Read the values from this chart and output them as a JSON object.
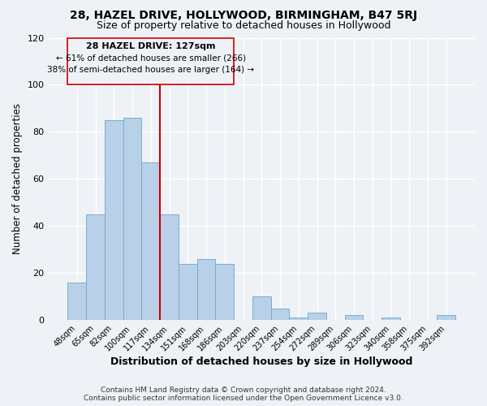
{
  "title1": "28, HAZEL DRIVE, HOLLYWOOD, BIRMINGHAM, B47 5RJ",
  "title2": "Size of property relative to detached houses in Hollywood",
  "xlabel": "Distribution of detached houses by size in Hollywood",
  "ylabel": "Number of detached properties",
  "bar_labels": [
    "48sqm",
    "65sqm",
    "82sqm",
    "100sqm",
    "117sqm",
    "134sqm",
    "151sqm",
    "168sqm",
    "186sqm",
    "203sqm",
    "220sqm",
    "237sqm",
    "254sqm",
    "272sqm",
    "289sqm",
    "306sqm",
    "323sqm",
    "340sqm",
    "358sqm",
    "375sqm",
    "392sqm"
  ],
  "bar_values": [
    16,
    45,
    85,
    86,
    67,
    45,
    24,
    26,
    24,
    0,
    10,
    5,
    1,
    3,
    0,
    2,
    0,
    1,
    0,
    0,
    2
  ],
  "bar_color": "#b8d0e8",
  "bar_edge_color": "#7aaed0",
  "vline_x": 4.5,
  "vline_color": "#cc0000",
  "ylim": [
    0,
    120
  ],
  "yticks": [
    0,
    20,
    40,
    60,
    80,
    100,
    120
  ],
  "annotation_title": "28 HAZEL DRIVE: 127sqm",
  "annotation_line1": "← 61% of detached houses are smaller (266)",
  "annotation_line2": "38% of semi-detached houses are larger (164) →",
  "footer1": "Contains HM Land Registry data © Crown copyright and database right 2024.",
  "footer2": "Contains public sector information licensed under the Open Government Licence v3.0.",
  "background_color": "#eef2f7",
  "title1_fontsize": 10,
  "title2_fontsize": 9,
  "xlabel_fontsize": 9,
  "ylabel_fontsize": 8.5,
  "footer_fontsize": 6.5
}
